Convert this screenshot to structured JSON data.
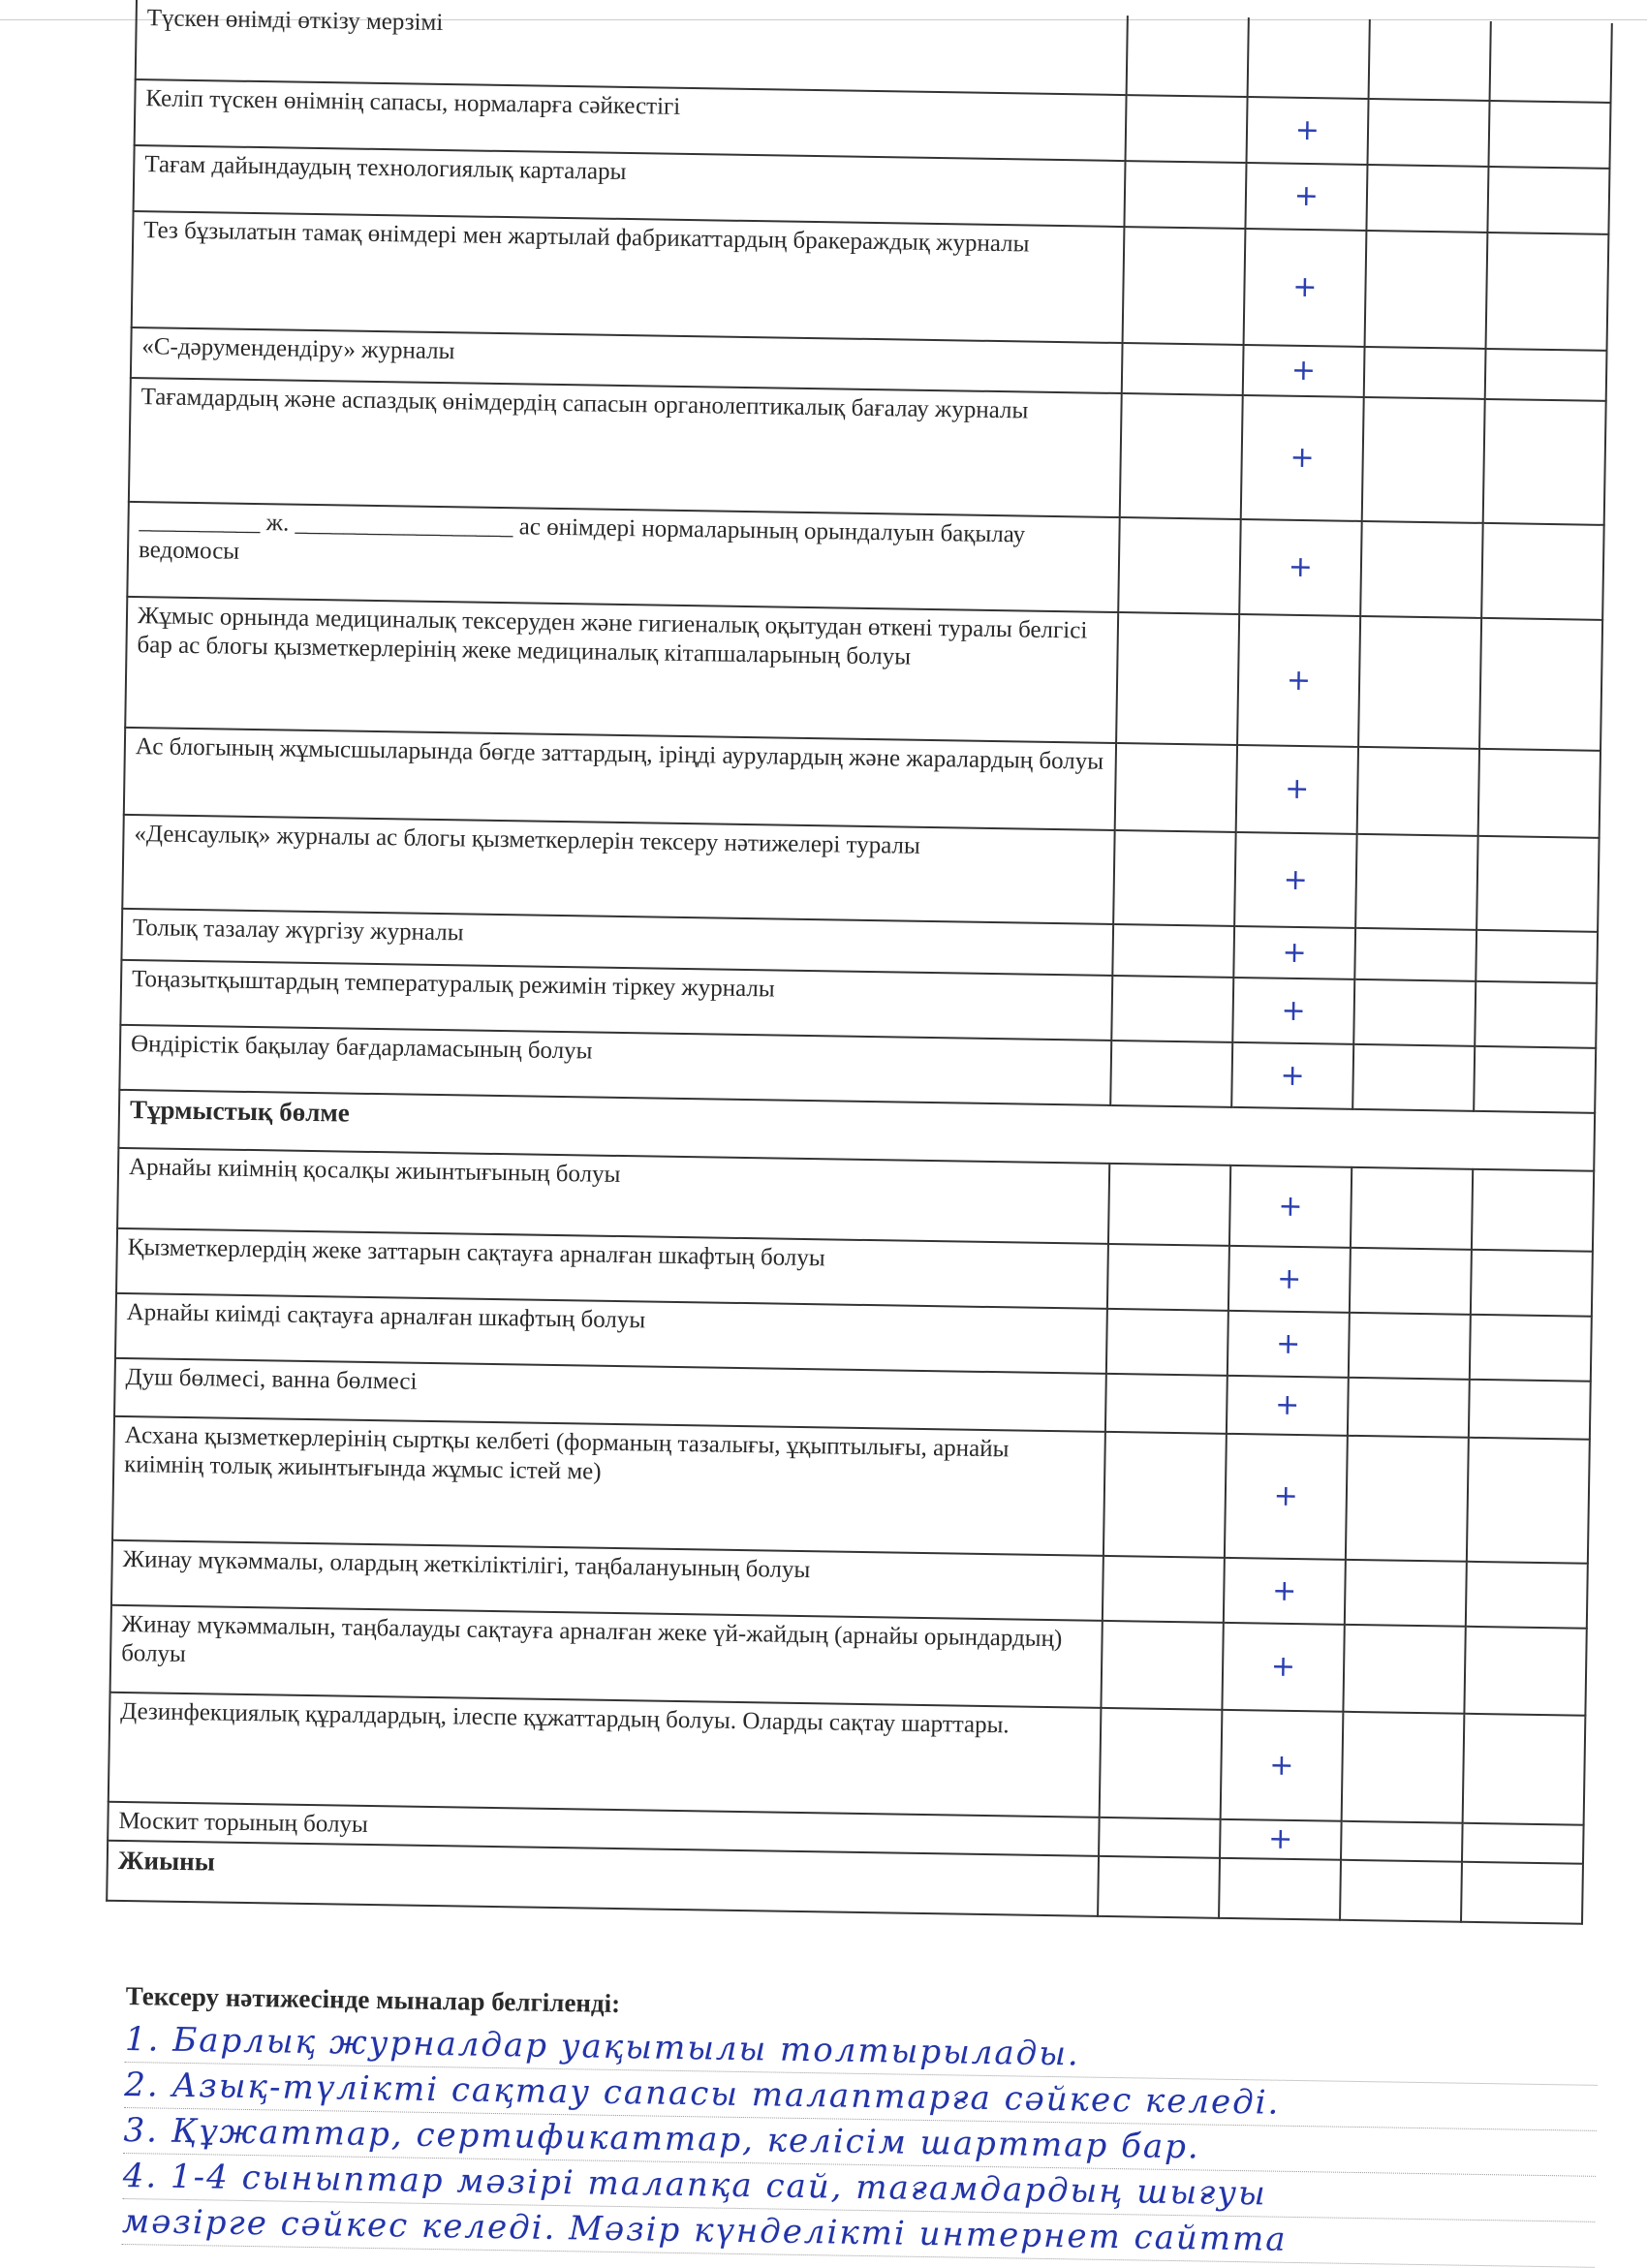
{
  "table": {
    "rows": [
      {
        "text": "Түскен өнімді өткізу мерзімі",
        "mark": ""
      },
      {
        "text": "Келіп түскен өнімнің сапасы, нормаларға сәйкестігі",
        "mark": "+"
      },
      {
        "text": "Тағам дайындаудың технологиялық карталары",
        "mark": "+"
      },
      {
        "text": "Тез бұзылатын тамақ өнімдері мен жартылай фабрикаттардың бракераждық журналы",
        "mark": "+"
      },
      {
        "text": "«С-дәрумендендіру» журналы",
        "mark": "+"
      },
      {
        "text": "Тағамдардың және аспаздық өнімдердің сапасын органолептикалық бағалау журналы",
        "mark": "+"
      },
      {
        "text": "__________ ж. __________________ ас өнімдері нормаларының орындалуын бақылау ведомосы",
        "mark": "+"
      },
      {
        "text": "Жұмыс орнында медициналық тексеруден және гигиеналық оқытудан өткені туралы белгісі бар ас блогы қызметкерлерінің жеке медициналық кітапшаларының болуы",
        "mark": "+"
      },
      {
        "text": "Ас блогының жұмысшыларында бөгде заттардың, іріңді аурулардың және жаралардың болуы",
        "mark": "+"
      },
      {
        "text": "«Денсаулық» журналы ас блогы қызметкерлерін тексеру нәтижелері туралы",
        "mark": "+"
      },
      {
        "text": "Толық тазалау жүргізу журналы",
        "mark": "+"
      },
      {
        "text": "Тоңазытқыштардың температуралық режимін тіркеу журналы",
        "mark": "+"
      },
      {
        "text": "Өндірістік бақылау бағдарламасының болуы",
        "mark": "+"
      }
    ],
    "section_title": "Тұрмыстық бөлме",
    "section_rows": [
      {
        "text": "Арнайы киімнің қосалқы жиынтығының болуы",
        "mark": "+"
      },
      {
        "text": "Қызметкерлердің жеке заттарын сақтауға арналған шкафтың болуы",
        "mark": "+"
      },
      {
        "text": "Арнайы киімді сақтауға арналған шкафтың болуы",
        "mark": "+"
      },
      {
        "text": "Душ бөлмесі, ванна бөлмесі",
        "mark": "+"
      },
      {
        "text": "Асхана қызметкерлерінің сыртқы келбеті (форманың тазалығы, ұқыптылығы, арнайы киімнің толық жиынтығында жұмыс істей ме)",
        "mark": "+"
      },
      {
        "text": "Жинау мүкәммалы, олардың жеткіліктілігі, таңбалануының болуы",
        "mark": "+"
      },
      {
        "text": "Жинау мүкәммалын, таңбалауды сақтауға арналған жеке үй-жайдың (арнайы орындардың) болуы",
        "mark": "+"
      },
      {
        "text": "Дезинфекциялық құралдардың, ілеспе құжаттардың болуы. Оларды сақтау шарттары.",
        "mark": "+"
      },
      {
        "text": "Москит торының болуы",
        "mark": "+"
      }
    ],
    "total_label": "Жиыны"
  },
  "results": {
    "heading": "Тексеру нәтижесінде мыналар белгіленді:",
    "handwritten_lines": [
      "1. Барлық журналдар уақытылы толтырылады.",
      "2. Азық-түлікті сақтау сапасы талаптарға сәйкес келеді.",
      "3. Құжаттар, сертификаттар, келісім шарттар бар.",
      "4. 1-4 сыныптар мәзірі талапқа сай, тағамдардың шығуы",
      "мәзірге сәйкес келеді. Мәзір күнделікті интернет сайтта"
    ]
  }
}
